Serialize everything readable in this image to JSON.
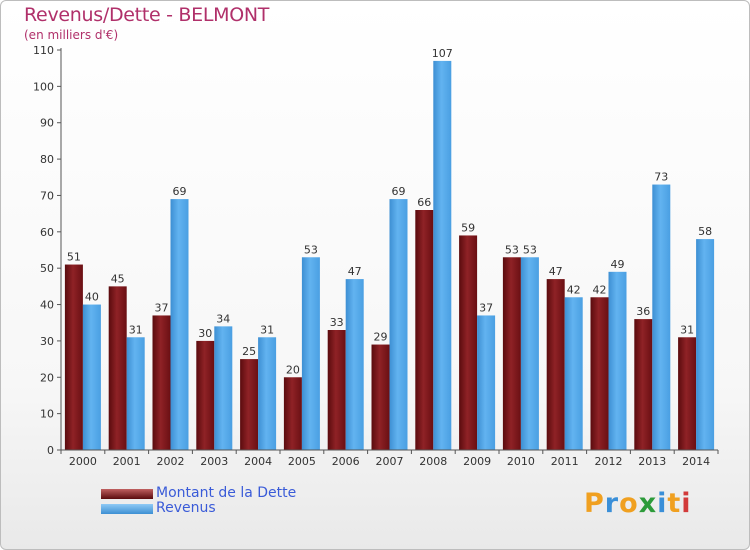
{
  "chart_data": {
    "type": "bar",
    "title": "Revenus/Dette - BELMONT",
    "subtitle": "(en milliers d'€)",
    "categories": [
      "2000",
      "2001",
      "2002",
      "2003",
      "2004",
      "2005",
      "2006",
      "2007",
      "2008",
      "2009",
      "2010",
      "2011",
      "2012",
      "2013",
      "2014"
    ],
    "series": [
      {
        "name": "Montant de la Dette",
        "color": "#7a1418",
        "values": [
          51,
          45,
          37,
          30,
          25,
          20,
          33,
          29,
          66,
          59,
          53,
          47,
          42,
          36,
          31
        ]
      },
      {
        "name": "Revenus",
        "color": "#4aa3e6",
        "values": [
          40,
          31,
          69,
          34,
          31,
          53,
          47,
          69,
          107,
          37,
          53,
          42,
          49,
          73,
          58
        ]
      }
    ],
    "ylim": [
      0,
      110
    ],
    "yticks": [
      0,
      10,
      20,
      30,
      40,
      50,
      60,
      70,
      80,
      90,
      100,
      110
    ],
    "grid": false,
    "legend": "bottom-left"
  },
  "logo": {
    "letters": [
      "P",
      "r",
      "o",
      "x",
      "i",
      "t",
      "i"
    ],
    "colors": [
      "#f0a020",
      "#3a8fd8",
      "#f0a020",
      "#2d9b3a",
      "#3a8fd8",
      "#f0a020",
      "#d23a3a"
    ]
  }
}
